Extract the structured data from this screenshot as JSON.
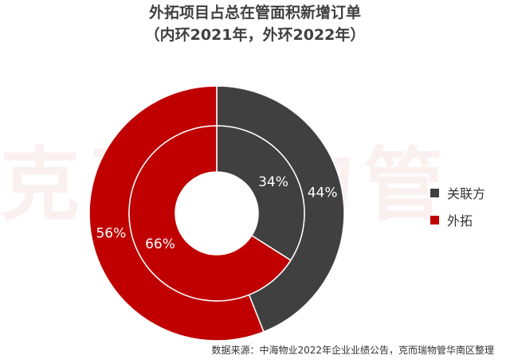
{
  "chart_data": {
    "type": "pie",
    "title": "外拓项目占总在管面积新增订单",
    "subtitle": "（内环2021年，外环2022年）",
    "rings": [
      {
        "name": "2021年",
        "position": "inner",
        "slices": [
          {
            "label": "关联方",
            "value": 34,
            "text": "34%"
          },
          {
            "label": "外拓",
            "value": 66,
            "text": "66%"
          }
        ]
      },
      {
        "name": "2022年",
        "position": "outer",
        "slices": [
          {
            "label": "关联方",
            "value": 44,
            "text": "44%"
          },
          {
            "label": "外拓",
            "value": 56,
            "text": "56%"
          }
        ]
      }
    ],
    "legend": {
      "placement": "right",
      "entries": [
        "关联方",
        "外拓"
      ]
    },
    "colors": {
      "关联方": "#404040",
      "外拓": "#c00000"
    }
  },
  "watermark": "克而瑞物管",
  "source": "数据来源：中海物业2022年企业业绩公告，克而瑞物管华南区整理"
}
